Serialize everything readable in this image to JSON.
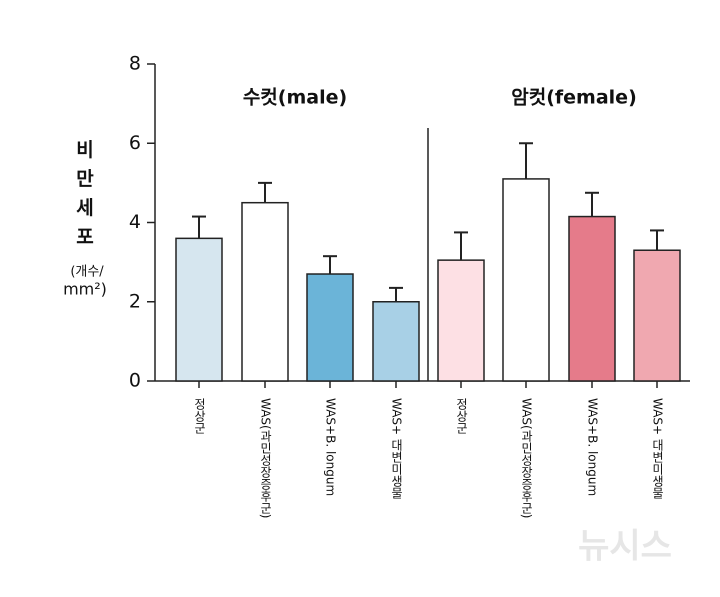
{
  "chart_data": {
    "type": "bar",
    "ylabel": "비만세포",
    "ylabel_unit": [
      "(개수/",
      "mm²)"
    ],
    "groups": [
      "수컷(male)",
      "암컷(female)"
    ],
    "categories": [
      "정상군",
      "WAS(과민성장증후군)",
      "WAS+B. longum",
      "WAS+ 대변미생물",
      "정상군",
      "WAS(과민성장증후군)",
      "WAS+B. longum",
      "WAS+ 대변미생물"
    ],
    "values": [
      3.6,
      4.5,
      2.7,
      2.0,
      3.05,
      5.1,
      4.15,
      3.3
    ],
    "errors": [
      0.55,
      0.5,
      0.45,
      0.35,
      0.7,
      0.9,
      0.6,
      0.5
    ],
    "colors": [
      "#d6e6ef",
      "#ffffff",
      "#6bb4d8",
      "#a8d0e6",
      "#fde0e4",
      "#ffffff",
      "#e57b8a",
      "#f0a8b0"
    ],
    "ylim": [
      0,
      8
    ],
    "yticks": [
      0,
      2,
      4,
      6,
      8
    ],
    "watermark": "뉴시스"
  }
}
